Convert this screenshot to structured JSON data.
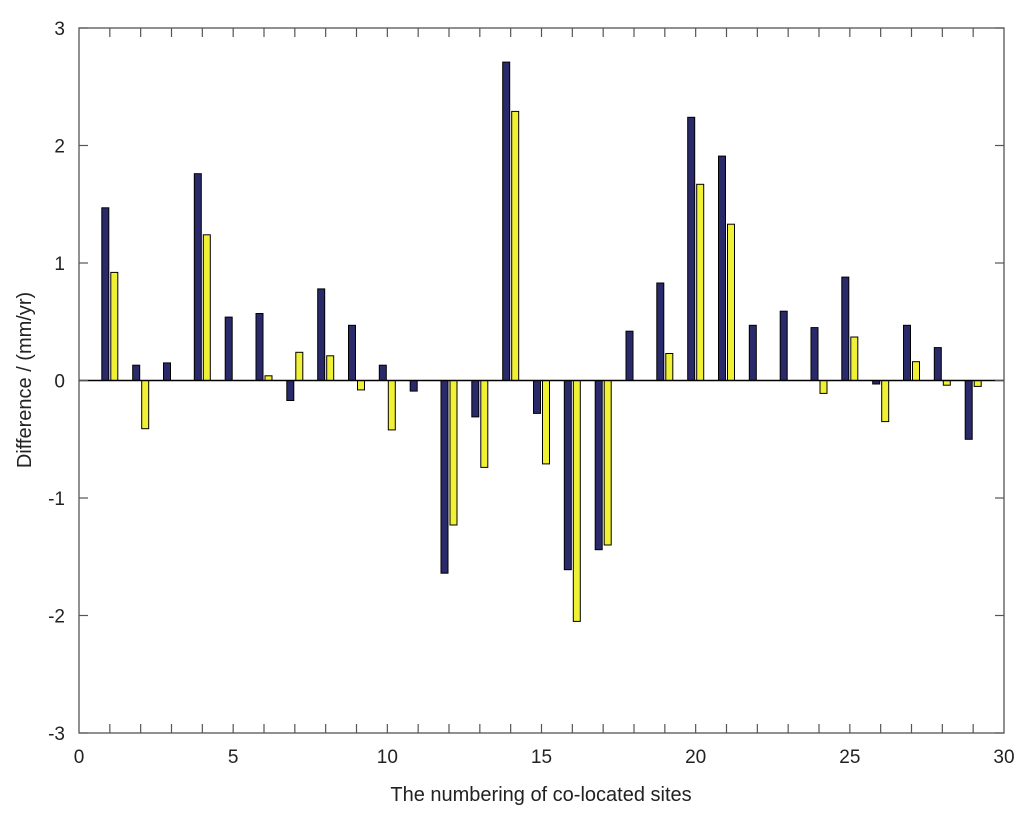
{
  "chart_data": {
    "type": "bar",
    "title": "",
    "xlabel": "The numbering of co-located sites",
    "ylabel": "Difference / (mm/yr)",
    "xlim": [
      0,
      30
    ],
    "ylim": [
      -3,
      3
    ],
    "xticks": [
      0,
      5,
      10,
      15,
      20,
      25,
      30
    ],
    "yticks": [
      -3,
      -2,
      -1,
      0,
      1,
      2,
      3
    ],
    "grid": false,
    "legend": "none",
    "categories": [
      1,
      2,
      3,
      4,
      5,
      6,
      7,
      8,
      9,
      10,
      11,
      12,
      13,
      14,
      15,
      16,
      17,
      18,
      19,
      20,
      21,
      22,
      23,
      24,
      25,
      26,
      27,
      28,
      29
    ],
    "series": [
      {
        "color": "#2a2a6a",
        "values": [
          1.47,
          0.13,
          0.15,
          1.76,
          0.54,
          0.57,
          -0.17,
          0.78,
          0.47,
          0.13,
          -0.09,
          -1.64,
          -0.31,
          2.71,
          -0.28,
          -1.61,
          -1.44,
          0.42,
          0.83,
          2.24,
          1.91,
          0.47,
          0.59,
          0.45,
          0.88,
          -0.03,
          0.47,
          0.28,
          -0.5
        ]
      },
      {
        "color": "#f0f034",
        "values": [
          0.92,
          -0.41,
          null,
          1.24,
          null,
          0.04,
          0.24,
          0.21,
          -0.08,
          -0.42,
          null,
          -1.23,
          -0.74,
          2.29,
          -0.71,
          -2.05,
          -1.4,
          null,
          0.23,
          1.67,
          1.33,
          null,
          null,
          -0.11,
          0.37,
          -0.35,
          0.16,
          -0.04,
          -0.05
        ]
      }
    ]
  }
}
